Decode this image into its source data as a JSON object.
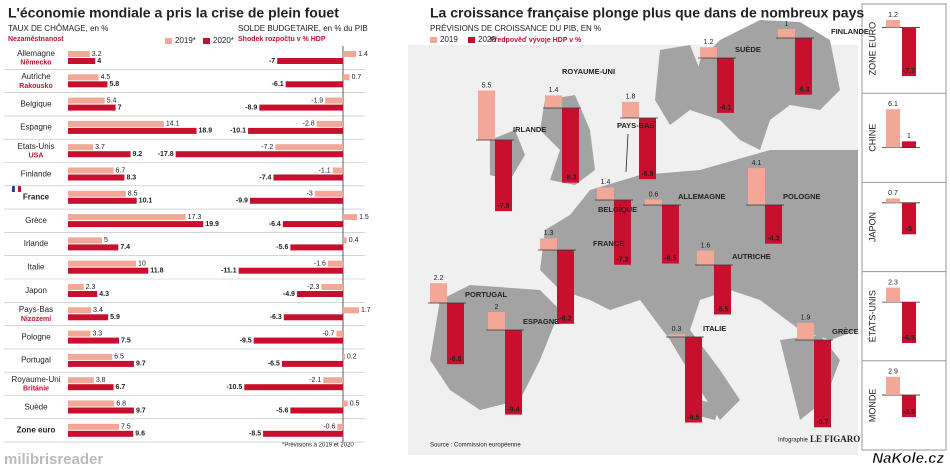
{
  "chart_data": [
    {
      "type": "bar",
      "orientation": "horizontal",
      "title": "L'économie mondiale a pris la crise de plein fouet",
      "subtitle": "TAUX DE CHÔMAGE, en %",
      "subtitle_translation": "Nezaměstnanost",
      "categories": [
        "Allemagne",
        "Autriche",
        "Belgique",
        "Espagne",
        "Etats-Unis",
        "Finlande",
        "France",
        "Grèce",
        "Irlande",
        "Italie",
        "Japon",
        "Pays-Bas",
        "Pologne",
        "Portugal",
        "Royaume-Uni",
        "Suède",
        "Zone euro"
      ],
      "category_translations": [
        "Německo",
        "Rakousko",
        null,
        null,
        "USA",
        null,
        null,
        null,
        null,
        null,
        null,
        "Nizozemí",
        null,
        null,
        "Británie",
        null,
        null
      ],
      "series": [
        {
          "name": "2019*",
          "color": "#f2a797",
          "values": [
            3.2,
            4.5,
            5.4,
            14.1,
            3.7,
            6.7,
            8.5,
            17.3,
            5,
            10,
            2.3,
            3.4,
            3.3,
            6.5,
            3.8,
            6.8,
            7.5
          ]
        },
        {
          "name": "2020*",
          "color": "#c8102e",
          "values": [
            4,
            5.8,
            7,
            18.9,
            9.2,
            8.3,
            10.1,
            19.9,
            7.4,
            11.8,
            4.3,
            5.9,
            7.5,
            9.7,
            6.7,
            9.7,
            9.6
          ]
        }
      ],
      "note": "*Prévisions à 2019 et 2020"
    },
    {
      "type": "bar",
      "orientation": "horizontal",
      "subtitle": "SOLDE BUDGETAIRE, en % du PIB",
      "subtitle_translation": "Shodek rozpočtu v % HDP",
      "series": [
        {
          "color": "#f2a797",
          "values": [
            1.4,
            0.7,
            -1.9,
            -2.8,
            -7.2,
            -1.1,
            -3,
            1.5,
            0.4,
            -1.6,
            -2.3,
            1.7,
            -0.7,
            0.2,
            -2.1,
            0.5,
            -0.6
          ]
        },
        {
          "color": "#c8102e",
          "values": [
            -7,
            -6.1,
            -8.9,
            -10.1,
            -17.8,
            -7.4,
            -9.9,
            -6.4,
            -5.6,
            -11.1,
            -4.9,
            -6.3,
            -9.5,
            -6.5,
            -10.5,
            -5.6,
            -8.5
          ]
        }
      ]
    },
    {
      "type": "map",
      "title": "La croissance française plonge plus que dans de nombreux pays",
      "subtitle": "PRÉVISIONS DE CROISSANCE DU PIB, EN %",
      "subtitle_translation": "Předpověď vývoje HDP v %",
      "categories": [
        "IRLANDE",
        "ROYAUME-UNI",
        "PAYS-BAS",
        "SUÈDE",
        "FINLANDE",
        "BELGIQUE",
        "ALLEMAGNE",
        "POLOGNE",
        "FRANCE",
        "AUTRICHE",
        "PORTUGAL",
        "ESPAGNE",
        "ITALIE",
        "GRÈCE"
      ],
      "series": [
        {
          "name": "2019",
          "color": "#f2a797",
          "values": [
            5.5,
            1.4,
            1.8,
            1.2,
            1,
            1.4,
            0.6,
            4.1,
            1.3,
            1.6,
            2.2,
            2,
            0.3,
            1.9
          ]
        },
        {
          "name": "2020",
          "color": "#c8102e",
          "values": [
            -7.9,
            -8.3,
            -6.8,
            -6.1,
            -6.3,
            -7.2,
            -6.5,
            -4.3,
            -8.2,
            -5.5,
            -6.8,
            -9.4,
            -9.5,
            -9.7
          ]
        }
      ],
      "source": "Source : Commission européenne",
      "credit_prefix": "Infographie",
      "credit_brand": "LE FIGARO"
    },
    {
      "type": "bar",
      "orientation": "vertical",
      "categories": [
        "ZONE EURO",
        "CHINE",
        "JAPON",
        "ÉTATS-UNIS",
        "MONDE"
      ],
      "series": [
        {
          "color": "#f2a797",
          "values": [
            1.2,
            6.1,
            0.7,
            2.3,
            2.9
          ]
        },
        {
          "color": "#c8102e",
          "values": [
            -7.7,
            1,
            -5,
            -6.5,
            -3.5
          ]
        }
      ]
    }
  ],
  "watermarks": [
    "milibrisreader",
    "NaKole.cz"
  ]
}
